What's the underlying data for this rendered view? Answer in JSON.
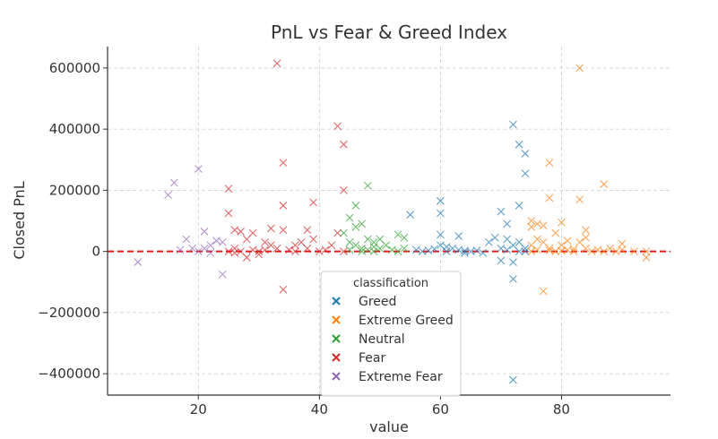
{
  "chart_data": {
    "type": "scatter",
    "title": "PnL vs Fear & Greed Index",
    "xlabel": "value",
    "ylabel": "Closed PnL",
    "xlim": [
      5,
      98
    ],
    "ylim": [
      -470000,
      670000
    ],
    "xticks": [
      20,
      40,
      60,
      80
    ],
    "yticks": [
      -400000,
      -200000,
      0,
      200000,
      400000,
      600000
    ],
    "x_tick_labels": [
      "20",
      "40",
      "60",
      "80"
    ],
    "y_tick_labels": [
      "−400000",
      "−200000",
      "0",
      "200000",
      "400000",
      "600000"
    ],
    "grid": true,
    "grid_style": "dashed",
    "reference_line": {
      "y": 0,
      "color": "#e31a1c",
      "style": "dashed"
    },
    "marker": "x",
    "legend": {
      "title": "classification",
      "position": "bottom-center"
    },
    "series": [
      {
        "name": "Greed",
        "color": "#1f77b4",
        "points": [
          [
            55,
            120000
          ],
          [
            56,
            5000
          ],
          [
            57,
            0
          ],
          [
            58,
            3000
          ],
          [
            59,
            8000
          ],
          [
            60,
            165000
          ],
          [
            60,
            125000
          ],
          [
            60,
            55000
          ],
          [
            60,
            20000
          ],
          [
            61,
            0
          ],
          [
            62,
            10000
          ],
          [
            63,
            50000
          ],
          [
            63,
            5000
          ],
          [
            64,
            -5000
          ],
          [
            65,
            0
          ],
          [
            66,
            3000
          ],
          [
            67,
            -5000
          ],
          [
            68,
            30000
          ],
          [
            69,
            45000
          ],
          [
            70,
            130000
          ],
          [
            70,
            10000
          ],
          [
            70,
            -30000
          ],
          [
            71,
            90000
          ],
          [
            71,
            40000
          ],
          [
            71,
            5000
          ],
          [
            72,
            415000
          ],
          [
            72,
            20000
          ],
          [
            72,
            -35000
          ],
          [
            72,
            -90000
          ],
          [
            72,
            -420000
          ],
          [
            73,
            350000
          ],
          [
            73,
            150000
          ],
          [
            73,
            30000
          ],
          [
            73,
            0
          ],
          [
            74,
            320000
          ],
          [
            74,
            255000
          ],
          [
            74,
            10000
          ],
          [
            74,
            0
          ],
          [
            61,
            15000
          ],
          [
            64,
            2000
          ]
        ]
      },
      {
        "name": "Extreme Greed",
        "color": "#ff7f0e",
        "points": [
          [
            75,
            100000
          ],
          [
            75,
            80000
          ],
          [
            75,
            20000
          ],
          [
            75,
            0
          ],
          [
            76,
            90000
          ],
          [
            76,
            40000
          ],
          [
            76,
            5000
          ],
          [
            77,
            85000
          ],
          [
            77,
            30000
          ],
          [
            77,
            -130000
          ],
          [
            78,
            290000
          ],
          [
            78,
            175000
          ],
          [
            78,
            10000
          ],
          [
            79,
            60000
          ],
          [
            79,
            0
          ],
          [
            80,
            95000
          ],
          [
            80,
            20000
          ],
          [
            81,
            35000
          ],
          [
            81,
            5000
          ],
          [
            82,
            0
          ],
          [
            83,
            600000
          ],
          [
            83,
            170000
          ],
          [
            83,
            30000
          ],
          [
            84,
            70000
          ],
          [
            84,
            45000
          ],
          [
            84,
            10000
          ],
          [
            85,
            0
          ],
          [
            86,
            5000
          ],
          [
            87,
            220000
          ],
          [
            87,
            0
          ],
          [
            88,
            10000
          ],
          [
            89,
            0
          ],
          [
            90,
            25000
          ],
          [
            90,
            5000
          ],
          [
            92,
            0
          ],
          [
            94,
            -20000
          ],
          [
            94,
            0
          ],
          [
            78,
            3000
          ],
          [
            80,
            2000
          ],
          [
            82,
            8000
          ]
        ]
      },
      {
        "name": "Neutral",
        "color": "#2ca02c",
        "points": [
          [
            44,
            60000
          ],
          [
            45,
            110000
          ],
          [
            45,
            30000
          ],
          [
            45,
            5000
          ],
          [
            46,
            150000
          ],
          [
            46,
            80000
          ],
          [
            46,
            20000
          ],
          [
            47,
            90000
          ],
          [
            47,
            10000
          ],
          [
            47,
            0
          ],
          [
            48,
            215000
          ],
          [
            48,
            40000
          ],
          [
            48,
            5000
          ],
          [
            49,
            30000
          ],
          [
            49,
            0
          ],
          [
            50,
            40000
          ],
          [
            50,
            10000
          ],
          [
            51,
            20000
          ],
          [
            52,
            5000
          ],
          [
            53,
            55000
          ],
          [
            53,
            0
          ],
          [
            54,
            45000
          ],
          [
            54,
            10000
          ],
          [
            49,
            15000
          ]
        ]
      },
      {
        "name": "Fear",
        "color": "#d62728",
        "points": [
          [
            25,
            205000
          ],
          [
            25,
            125000
          ],
          [
            25,
            0
          ],
          [
            26,
            70000
          ],
          [
            26,
            10000
          ],
          [
            26,
            -5000
          ],
          [
            27,
            65000
          ],
          [
            27,
            0
          ],
          [
            28,
            40000
          ],
          [
            28,
            -20000
          ],
          [
            29,
            60000
          ],
          [
            29,
            5000
          ],
          [
            30,
            0
          ],
          [
            30,
            -10000
          ],
          [
            31,
            30000
          ],
          [
            31,
            5000
          ],
          [
            32,
            75000
          ],
          [
            32,
            20000
          ],
          [
            33,
            615000
          ],
          [
            33,
            10000
          ],
          [
            34,
            290000
          ],
          [
            34,
            150000
          ],
          [
            34,
            70000
          ],
          [
            34,
            -125000
          ],
          [
            35,
            5000
          ],
          [
            36,
            0
          ],
          [
            37,
            30000
          ],
          [
            38,
            70000
          ],
          [
            38,
            10000
          ],
          [
            39,
            160000
          ],
          [
            39,
            40000
          ],
          [
            40,
            0
          ],
          [
            41,
            5000
          ],
          [
            42,
            20000
          ],
          [
            43,
            410000
          ],
          [
            43,
            60000
          ],
          [
            44,
            350000
          ],
          [
            44,
            200000
          ],
          [
            44,
            0
          ],
          [
            36,
            20000
          ]
        ]
      },
      {
        "name": "Extreme Fear",
        "color": "#9467bd",
        "points": [
          [
            10,
            -35000
          ],
          [
            15,
            185000
          ],
          [
            16,
            225000
          ],
          [
            17,
            5000
          ],
          [
            18,
            40000
          ],
          [
            19,
            10000
          ],
          [
            20,
            270000
          ],
          [
            20,
            0
          ],
          [
            21,
            65000
          ],
          [
            21,
            10000
          ],
          [
            22,
            -5000
          ],
          [
            23,
            35000
          ],
          [
            24,
            -75000
          ],
          [
            24,
            30000
          ],
          [
            22,
            20000
          ]
        ]
      }
    ]
  }
}
